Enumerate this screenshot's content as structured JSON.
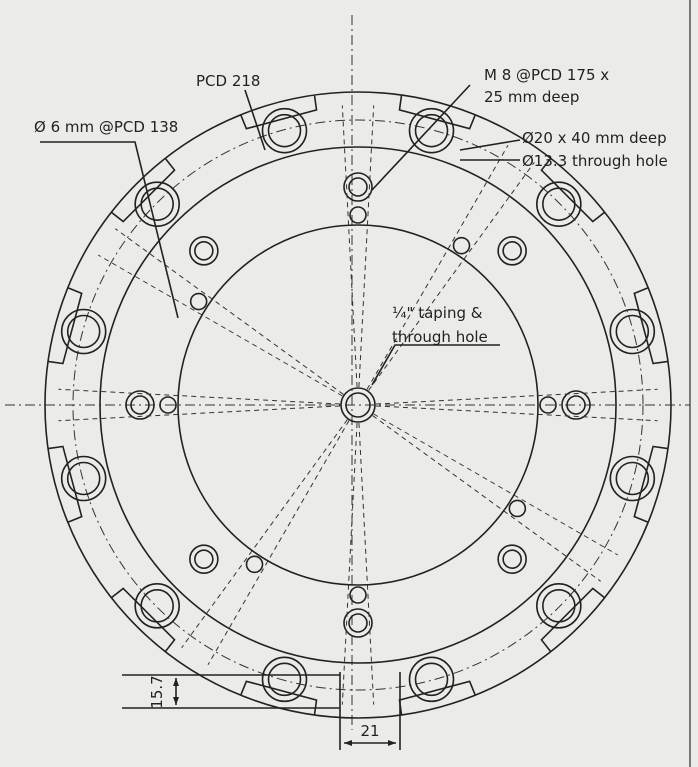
{
  "labels": {
    "pcd_218": "PCD 218",
    "m8_line1": "M 8 @PCD 175 x",
    "m8_line2": "25 mm deep",
    "dia6": "Ø 6 mm @PCD 138",
    "dia20": "Ø20 x 40 mm deep",
    "dia13": "Ø13.3 through hole",
    "center_line1": "¼\" taping &",
    "center_line2": "through hole"
  },
  "dimensions": {
    "height": "15.7",
    "width": "21"
  }
}
